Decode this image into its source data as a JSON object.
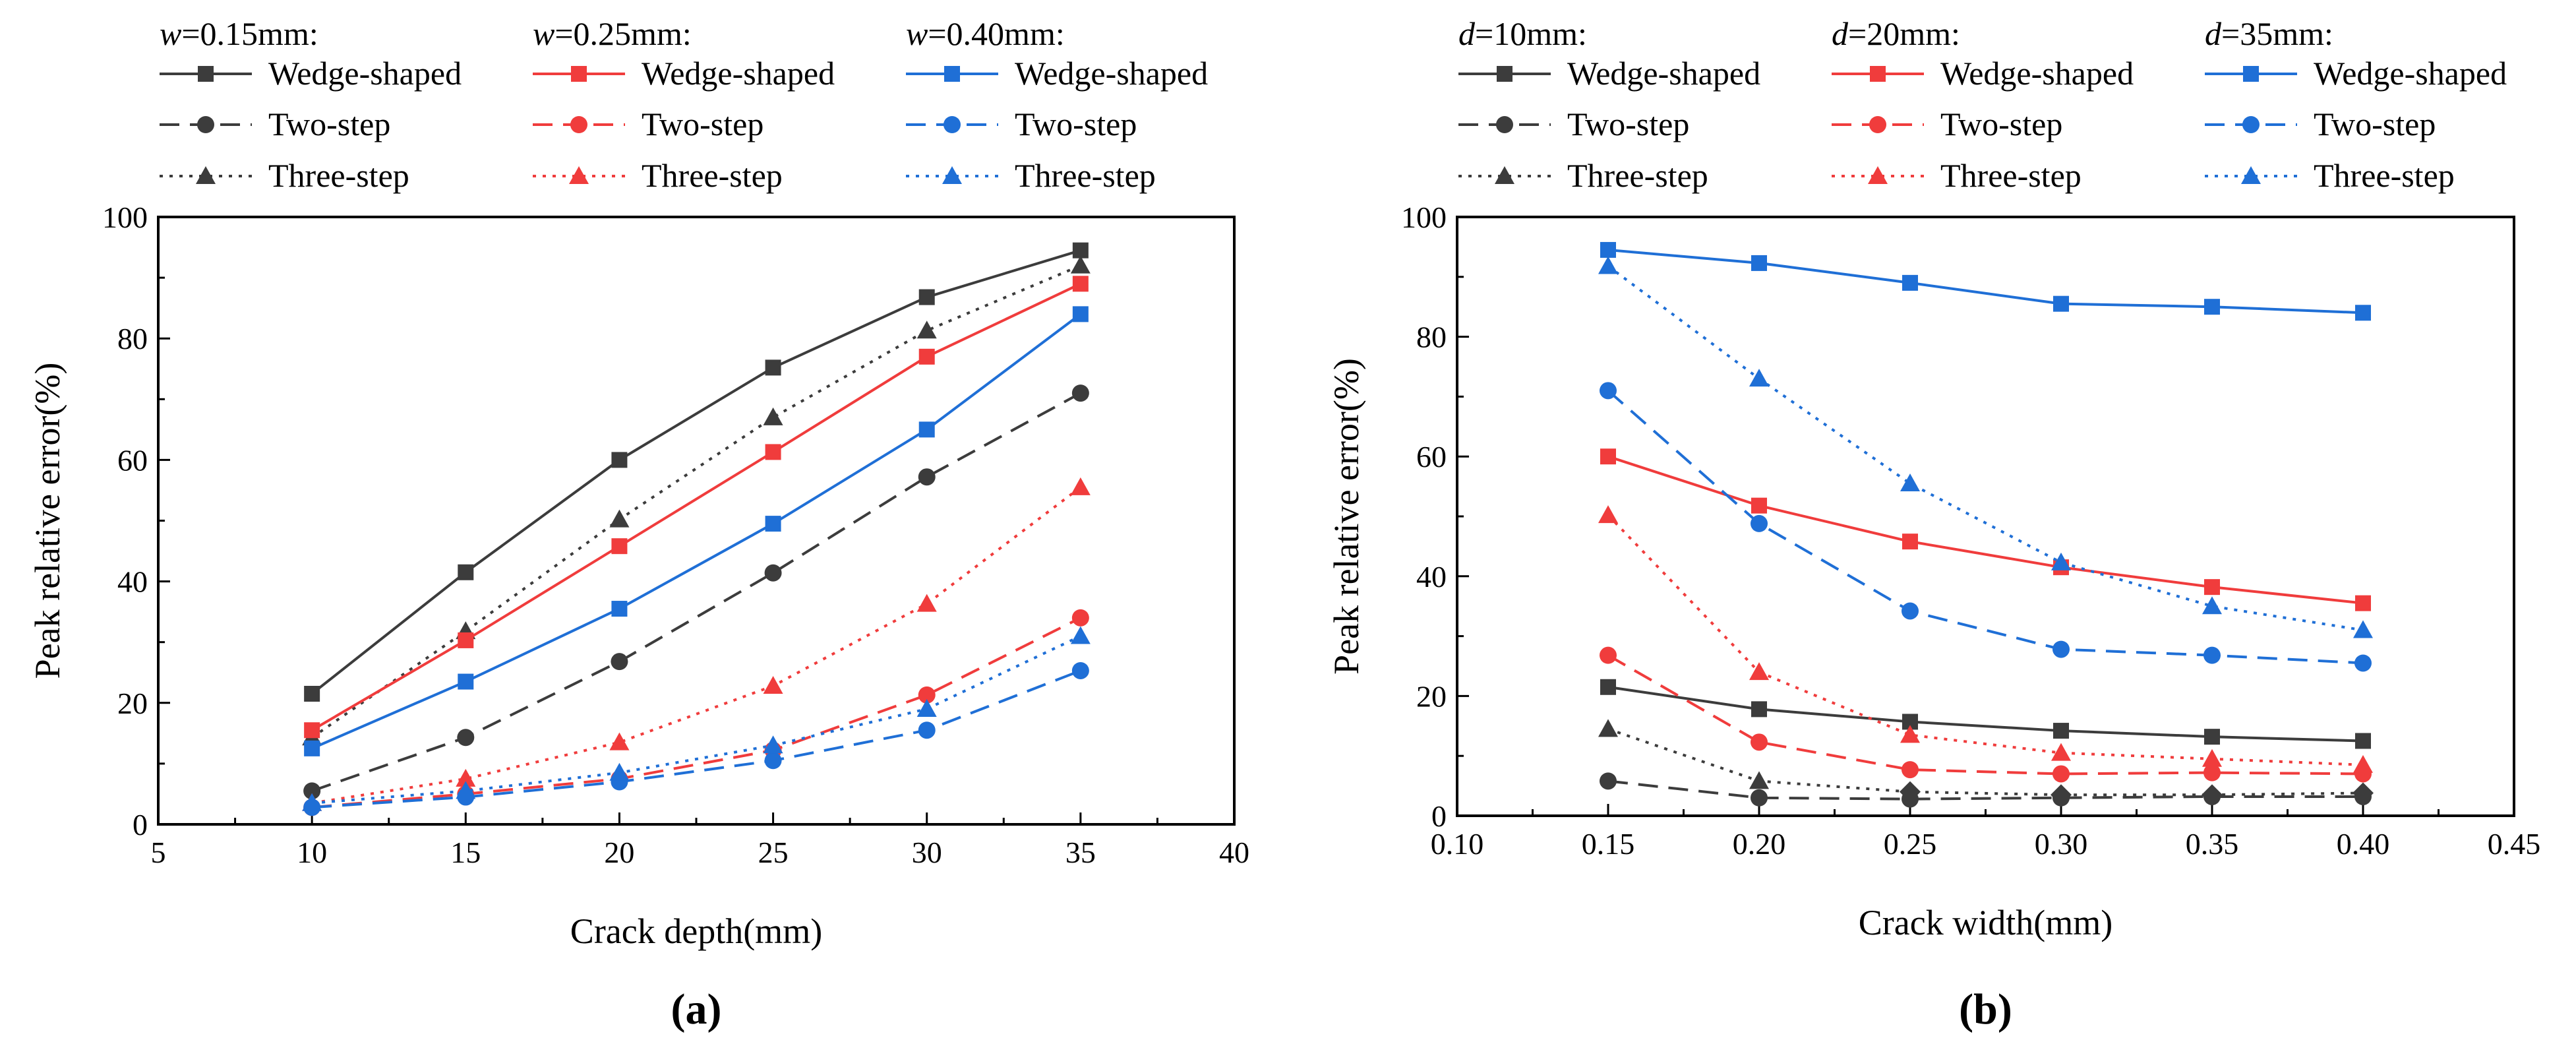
{
  "chart_data": [
    {
      "type": "line",
      "panel_label": "(a)",
      "panel_letter": "a",
      "xlabel": "Crack depth(mm)",
      "ylabel": "Peak relative error(%)",
      "xlim": [
        5,
        40
      ],
      "ylim": [
        0,
        100
      ],
      "xticks": [
        5,
        10,
        15,
        20,
        25,
        30,
        35,
        40
      ],
      "xtick_labels": [
        "5",
        "10",
        "15",
        "20",
        "25",
        "30",
        "35",
        "40"
      ],
      "yticks": [
        0,
        20,
        40,
        60,
        80,
        100
      ],
      "ytick_labels": [
        "0",
        "20",
        "40",
        "60",
        "80",
        "100"
      ],
      "grid": false,
      "legend": "top",
      "legend_groups": [
        {
          "var": "w",
          "rest": "=0.15mm:",
          "color": "#3c3c3c"
        },
        {
          "var": "w",
          "rest": "=0.25mm:",
          "color": "#f03c3c"
        },
        {
          "var": "w",
          "rest": "=0.40mm:",
          "color": "#1f6fd6"
        }
      ],
      "x": [
        10,
        15,
        20,
        25,
        30,
        35
      ],
      "series": [
        {
          "name": "Wedge-shaped",
          "group": 0,
          "style": "solid",
          "marker": "square",
          "values": [
            21.5,
            41.5,
            60,
            75.2,
            86.8,
            94.5
          ]
        },
        {
          "name": "Two-step",
          "group": 0,
          "style": "dashed",
          "marker": "circle",
          "values": [
            5.5,
            14.3,
            26.8,
            41.4,
            57.2,
            71
          ]
        },
        {
          "name": "Three-step",
          "group": 0,
          "style": "dotted",
          "marker": "triangle",
          "values": [
            14.3,
            31.8,
            50.2,
            67,
            81.3,
            92
          ]
        },
        {
          "name": "Wedge-shaped",
          "group": 1,
          "style": "solid",
          "marker": "square",
          "values": [
            15.5,
            30.3,
            45.8,
            61.3,
            77,
            89
          ]
        },
        {
          "name": "Two-step",
          "group": 1,
          "style": "dashed",
          "marker": "circle",
          "values": [
            2.8,
            5,
            7.5,
            12.2,
            21.3,
            34
          ]
        },
        {
          "name": "Three-step",
          "group": 1,
          "style": "dotted",
          "marker": "triangle",
          "values": [
            3.5,
            7.5,
            13.5,
            22.8,
            36.3,
            55.5
          ]
        },
        {
          "name": "Wedge-shaped",
          "group": 2,
          "style": "solid",
          "marker": "square",
          "values": [
            12.5,
            23.5,
            35.5,
            49.5,
            65,
            84
          ]
        },
        {
          "name": "Two-step",
          "group": 2,
          "style": "dashed",
          "marker": "circle",
          "values": [
            2.8,
            4.5,
            7,
            10.5,
            15.5,
            25.3
          ]
        },
        {
          "name": "Three-step",
          "group": 2,
          "style": "dotted",
          "marker": "triangle",
          "values": [
            3.5,
            5.5,
            8.5,
            13,
            19,
            31
          ]
        }
      ]
    },
    {
      "type": "line",
      "panel_label": "(b)",
      "panel_letter": "b",
      "xlabel": "Crack width(mm)",
      "ylabel": "Peak relative error(%)",
      "xlim": [
        0.1,
        0.45
      ],
      "ylim": [
        0,
        100
      ],
      "xticks": [
        0.1,
        0.15,
        0.2,
        0.25,
        0.3,
        0.35,
        0.4,
        0.45
      ],
      "xtick_labels": [
        "0.10",
        "0.15",
        "0.20",
        "0.25",
        "0.30",
        "0.35",
        "0.40",
        "0.45"
      ],
      "yticks": [
        0,
        20,
        40,
        60,
        80,
        100
      ],
      "ytick_labels": [
        "0",
        "20",
        "40",
        "60",
        "80",
        "100"
      ],
      "grid": false,
      "legend": "top",
      "legend_groups": [
        {
          "var": "d",
          "rest": "=10mm:",
          "color": "#3c3c3c"
        },
        {
          "var": "d",
          "rest": "=20mm:",
          "color": "#f03c3c"
        },
        {
          "var": "d",
          "rest": "=35mm:",
          "color": "#1f6fd6"
        }
      ],
      "x": [
        0.15,
        0.2,
        0.25,
        0.3,
        0.35,
        0.4
      ],
      "series": [
        {
          "name": "Wedge-shaped",
          "group": 0,
          "style": "solid",
          "marker": "square",
          "values": [
            21.5,
            17.8,
            15.7,
            14.2,
            13.2,
            12.5
          ]
        },
        {
          "name": "Two-step",
          "group": 0,
          "style": "dashed",
          "marker": "circle",
          "values": [
            5.8,
            3,
            2.8,
            3,
            3.2,
            3.2
          ]
        },
        {
          "name": "Three-step",
          "group": 0,
          "style": "dotted",
          "marker": "triangle",
          "values": [
            14.5,
            5.8,
            4,
            3.5,
            3.5,
            3.8
          ]
        },
        {
          "name": "Wedge-shaped",
          "group": 1,
          "style": "solid",
          "marker": "square",
          "values": [
            60,
            51.8,
            45.8,
            41.5,
            38.2,
            35.5
          ]
        },
        {
          "name": "Two-step",
          "group": 1,
          "style": "dashed",
          "marker": "circle",
          "values": [
            26.8,
            12.3,
            7.7,
            7,
            7.2,
            7
          ]
        },
        {
          "name": "Three-step",
          "group": 1,
          "style": "dotted",
          "marker": "triangle",
          "values": [
            50.2,
            24,
            13.5,
            10.5,
            9.5,
            8.5
          ]
        },
        {
          "name": "Wedge-shaped",
          "group": 2,
          "style": "solid",
          "marker": "square",
          "values": [
            94.5,
            92.3,
            89,
            85.5,
            85,
            84
          ]
        },
        {
          "name": "Two-step",
          "group": 2,
          "style": "dashed",
          "marker": "circle",
          "values": [
            71,
            48.8,
            34.2,
            27.8,
            26.8,
            25.5
          ]
        },
        {
          "name": "Three-step",
          "group": 2,
          "style": "dotted",
          "marker": "triangle",
          "values": [
            91.8,
            73,
            55.5,
            42.3,
            35,
            31
          ]
        }
      ]
    }
  ]
}
